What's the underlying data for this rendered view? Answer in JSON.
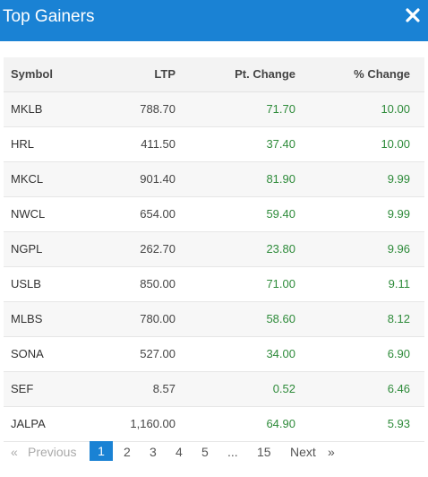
{
  "header": {
    "title": "Top Gainers",
    "close_icon": "close-icon"
  },
  "table": {
    "columns": [
      "Symbol",
      "LTP",
      "Pt. Change",
      "% Change"
    ],
    "rows": [
      [
        "MKLB",
        "788.70",
        "71.70",
        "10.00"
      ],
      [
        "HRL",
        "411.50",
        "37.40",
        "10.00"
      ],
      [
        "MKCL",
        "901.40",
        "81.90",
        "9.99"
      ],
      [
        "NWCL",
        "654.00",
        "59.40",
        "9.99"
      ],
      [
        "NGPL",
        "262.70",
        "23.80",
        "9.96"
      ],
      [
        "USLB",
        "850.00",
        "71.00",
        "9.11"
      ],
      [
        "MLBS",
        "780.00",
        "58.60",
        "8.12"
      ],
      [
        "SONA",
        "527.00",
        "34.00",
        "6.90"
      ],
      [
        "SEF",
        "8.57",
        "0.52",
        "6.46"
      ],
      [
        "JALPA",
        "1,160.00",
        "64.90",
        "5.93"
      ]
    ]
  },
  "pagination": {
    "first": "«",
    "previous": "Previous",
    "pages": [
      "1",
      "2",
      "3",
      "4",
      "5"
    ],
    "ellipsis": "...",
    "last_page": "15",
    "next": "Next",
    "end": "»",
    "current": "1"
  },
  "colors": {
    "accent": "#1a82d4",
    "positive": "#2e8b3a"
  }
}
